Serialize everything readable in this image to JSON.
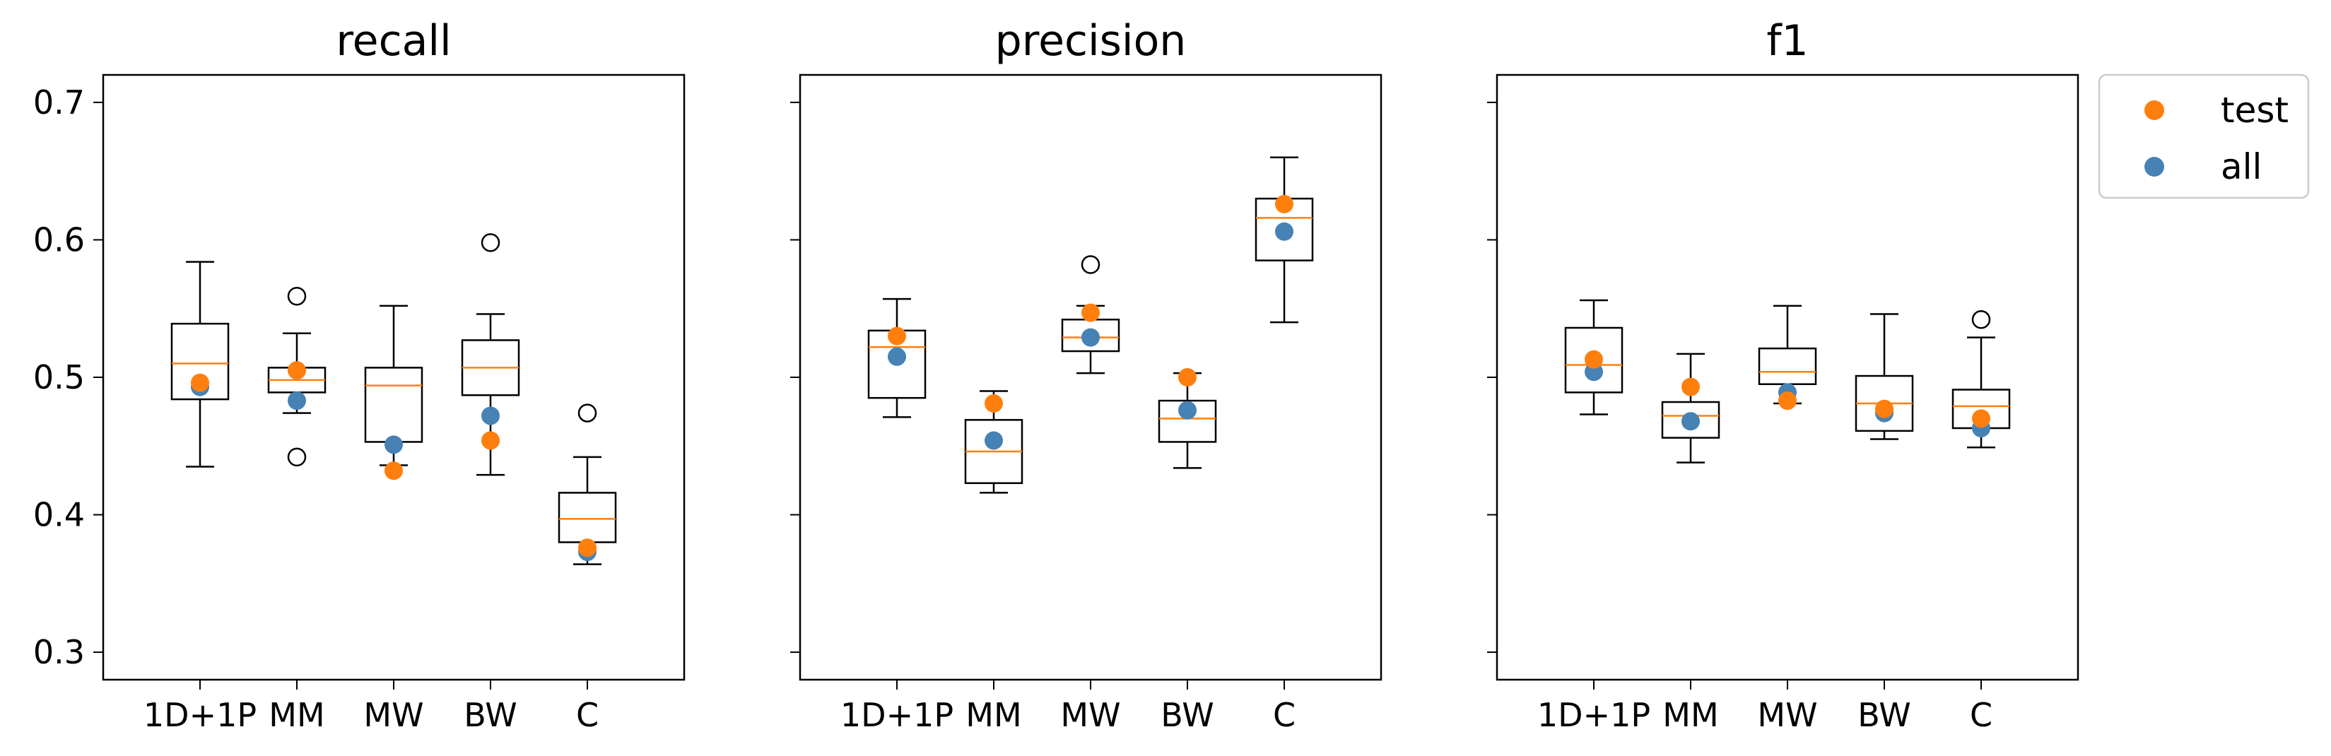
{
  "chart_data": [
    {
      "type": "box",
      "title": "recall",
      "categories": [
        "1D+1P",
        "MM",
        "MW",
        "BW",
        "C"
      ],
      "ylim": [
        0.28,
        0.72
      ],
      "yticks": [
        0.3,
        0.4,
        0.5,
        0.6,
        0.7
      ],
      "ytick_labels": [
        "0.3",
        "0.4",
        "0.5",
        "0.6",
        "0.7"
      ],
      "boxes": [
        {
          "whisker_low": 0.435,
          "q1": 0.484,
          "median": 0.51,
          "q3": 0.539,
          "whisker_high": 0.584,
          "outliers": []
        },
        {
          "whisker_low": 0.474,
          "q1": 0.489,
          "median": 0.498,
          "q3": 0.507,
          "whisker_high": 0.532,
          "outliers": [
            0.442,
            0.559
          ]
        },
        {
          "whisker_low": 0.436,
          "q1": 0.453,
          "median": 0.494,
          "q3": 0.507,
          "whisker_high": 0.552,
          "outliers": []
        },
        {
          "whisker_low": 0.429,
          "q1": 0.487,
          "median": 0.507,
          "q3": 0.527,
          "whisker_high": 0.546,
          "outliers": [
            0.598
          ]
        },
        {
          "whisker_low": 0.364,
          "q1": 0.38,
          "median": 0.397,
          "q3": 0.416,
          "whisker_high": 0.442,
          "outliers": [
            0.474
          ]
        }
      ],
      "points": {
        "test": [
          0.496,
          0.505,
          0.432,
          0.454,
          0.376
        ],
        "all": [
          0.493,
          0.483,
          0.451,
          0.472,
          0.373
        ]
      }
    },
    {
      "type": "box",
      "title": "precision",
      "categories": [
        "1D+1P",
        "MM",
        "MW",
        "BW",
        "C"
      ],
      "ylim": [
        0.28,
        0.72
      ],
      "yticks": [
        0.3,
        0.4,
        0.5,
        0.6,
        0.7
      ],
      "ytick_labels": [],
      "boxes": [
        {
          "whisker_low": 0.471,
          "q1": 0.485,
          "median": 0.522,
          "q3": 0.534,
          "whisker_high": 0.557,
          "outliers": []
        },
        {
          "whisker_low": 0.416,
          "q1": 0.423,
          "median": 0.446,
          "q3": 0.469,
          "whisker_high": 0.49,
          "outliers": []
        },
        {
          "whisker_low": 0.503,
          "q1": 0.519,
          "median": 0.529,
          "q3": 0.542,
          "whisker_high": 0.552,
          "outliers": [
            0.582
          ]
        },
        {
          "whisker_low": 0.434,
          "q1": 0.453,
          "median": 0.47,
          "q3": 0.483,
          "whisker_high": 0.503,
          "outliers": []
        },
        {
          "whisker_low": 0.54,
          "q1": 0.585,
          "median": 0.616,
          "q3": 0.63,
          "whisker_high": 0.66,
          "outliers": []
        }
      ],
      "points": {
        "test": [
          0.53,
          0.481,
          0.547,
          0.5,
          0.626
        ],
        "all": [
          0.515,
          0.454,
          0.529,
          0.476,
          0.606
        ]
      }
    },
    {
      "type": "box",
      "title": "f1",
      "categories": [
        "1D+1P",
        "MM",
        "MW",
        "BW",
        "C"
      ],
      "ylim": [
        0.28,
        0.72
      ],
      "yticks": [
        0.3,
        0.4,
        0.5,
        0.6,
        0.7
      ],
      "ytick_labels": [],
      "boxes": [
        {
          "whisker_low": 0.473,
          "q1": 0.489,
          "median": 0.509,
          "q3": 0.536,
          "whisker_high": 0.556,
          "outliers": []
        },
        {
          "whisker_low": 0.438,
          "q1": 0.456,
          "median": 0.472,
          "q3": 0.482,
          "whisker_high": 0.517,
          "outliers": []
        },
        {
          "whisker_low": 0.481,
          "q1": 0.495,
          "median": 0.504,
          "q3": 0.521,
          "whisker_high": 0.552,
          "outliers": []
        },
        {
          "whisker_low": 0.455,
          "q1": 0.461,
          "median": 0.481,
          "q3": 0.501,
          "whisker_high": 0.546,
          "outliers": []
        },
        {
          "whisker_low": 0.449,
          "q1": 0.463,
          "median": 0.479,
          "q3": 0.491,
          "whisker_high": 0.529,
          "outliers": [
            0.542
          ]
        }
      ],
      "points": {
        "test": [
          0.513,
          0.493,
          0.483,
          0.477,
          0.47
        ],
        "all": [
          0.504,
          0.468,
          0.489,
          0.474,
          0.463
        ]
      }
    }
  ],
  "legend": {
    "placement": "upper right, outside plots",
    "entries": [
      {
        "key": "test",
        "label": "test",
        "color": "#ff7f0e"
      },
      {
        "key": "all",
        "label": "all",
        "color": "#4682b4"
      }
    ]
  },
  "colors": {
    "median": "#ff7f0e",
    "test": "#ff7f0e",
    "all": "#4682b4",
    "box": "#000000"
  }
}
